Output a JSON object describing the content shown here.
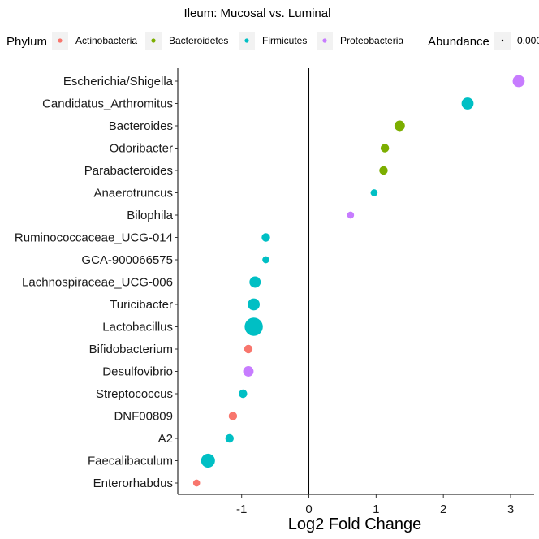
{
  "chart_data": {
    "type": "scatter",
    "title": "Ileum: Mucosal vs. Luminal",
    "xlabel": "Log2 Fold Change",
    "ylabel": "",
    "xlim": [
      -1.95,
      3.35
    ],
    "xticks": [
      -1,
      0,
      1,
      2,
      3
    ],
    "vline_at": 0,
    "grid": false,
    "legend": {
      "placement": "top",
      "color_title": "Phylum",
      "color_entries": [
        {
          "name": "Actinobacteria",
          "color": "#F8766D"
        },
        {
          "name": "Bacteroidetes",
          "color": "#7CAE00"
        },
        {
          "name": "Firmicutes",
          "color": "#00BFC4"
        },
        {
          "name": "Proteobacteria",
          "color": "#C77CFF"
        }
      ],
      "size_title": "Abundance",
      "size_entries": [
        "0.000"
      ]
    },
    "points": [
      {
        "genus": "Escherichia/Shigella",
        "phylum": "Proteobacteria",
        "x": 3.12,
        "abundance": 0.006
      },
      {
        "genus": "Candidatus_Arthromitus",
        "phylum": "Firmicutes",
        "x": 2.36,
        "abundance": 0.006
      },
      {
        "genus": "Bacteroides",
        "phylum": "Bacteroidetes",
        "x": 1.35,
        "abundance": 0.004
      },
      {
        "genus": "Odoribacter",
        "phylum": "Bacteroidetes",
        "x": 1.13,
        "abundance": 0.002
      },
      {
        "genus": "Parabacteroides",
        "phylum": "Bacteroidetes",
        "x": 1.11,
        "abundance": 0.002
      },
      {
        "genus": "Anaerotruncus",
        "phylum": "Firmicutes",
        "x": 0.97,
        "abundance": 0.001
      },
      {
        "genus": "Bilophila",
        "phylum": "Proteobacteria",
        "x": 0.62,
        "abundance": 0.001
      },
      {
        "genus": "Ruminococcaceae_UCG-014",
        "phylum": "Firmicutes",
        "x": -0.64,
        "abundance": 0.002
      },
      {
        "genus": "GCA-900066575",
        "phylum": "Firmicutes",
        "x": -0.64,
        "abundance": 0.001
      },
      {
        "genus": "Lachnospiraceae_UCG-006",
        "phylum": "Firmicutes",
        "x": -0.8,
        "abundance": 0.005
      },
      {
        "genus": "Turicibacter",
        "phylum": "Firmicutes",
        "x": -0.82,
        "abundance": 0.006
      },
      {
        "genus": "Lactobacillus",
        "phylum": "Firmicutes",
        "x": -0.82,
        "abundance": 0.018
      },
      {
        "genus": "Bifidobacterium",
        "phylum": "Actinobacteria",
        "x": -0.9,
        "abundance": 0.002
      },
      {
        "genus": "Desulfovibrio",
        "phylum": "Proteobacteria",
        "x": -0.9,
        "abundance": 0.004
      },
      {
        "genus": "Streptococcus",
        "phylum": "Firmicutes",
        "x": -0.98,
        "abundance": 0.002
      },
      {
        "genus": "DNF00809",
        "phylum": "Actinobacteria",
        "x": -1.13,
        "abundance": 0.002
      },
      {
        "genus": "A2",
        "phylum": "Firmicutes",
        "x": -1.18,
        "abundance": 0.002
      },
      {
        "genus": "Faecalibaculum",
        "phylum": "Firmicutes",
        "x": -1.5,
        "abundance": 0.009
      },
      {
        "genus": "Enterorhabdus",
        "phylum": "Actinobacteria",
        "x": -1.67,
        "abundance": 0.001
      }
    ]
  }
}
